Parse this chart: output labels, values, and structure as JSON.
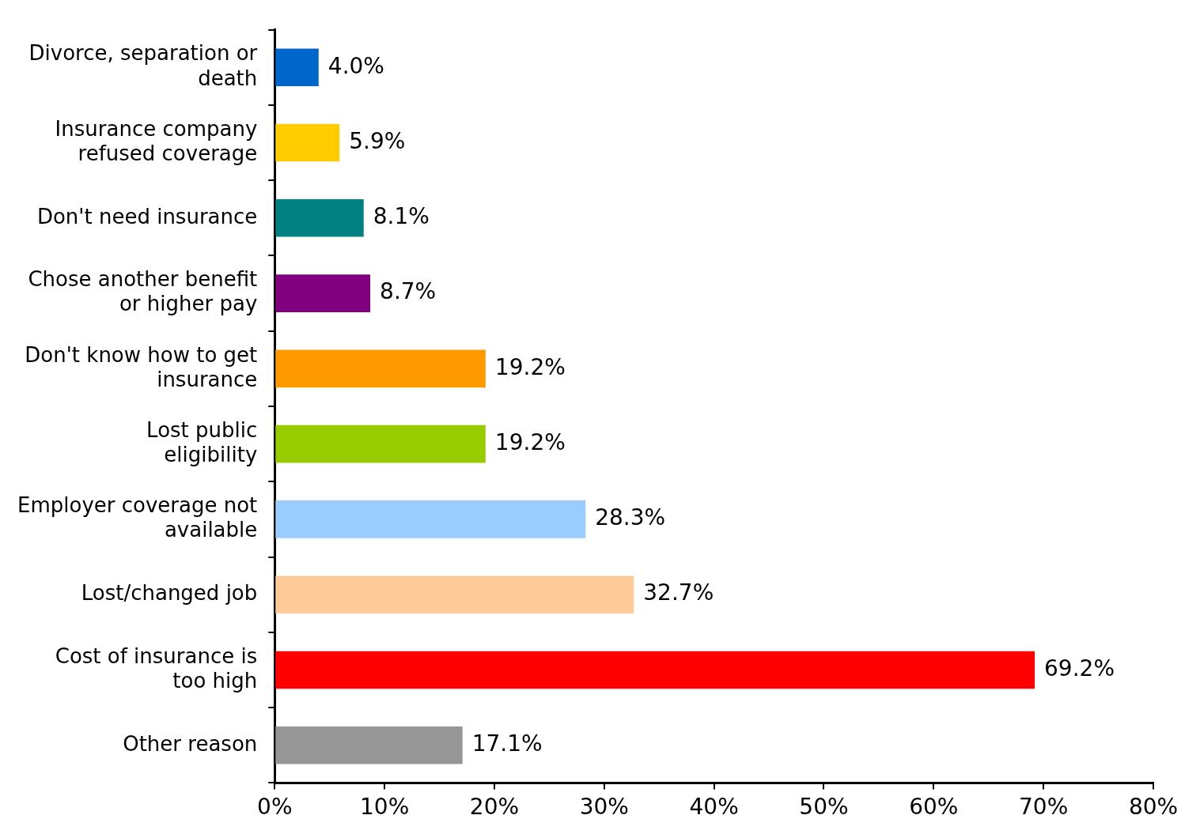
{
  "chart_data": {
    "type": "bar",
    "orientation": "horizontal",
    "categories": [
      "Divorce, separation or death",
      "Insurance company refused coverage",
      "Don't need insurance",
      "Chose another benefit or higher pay",
      "Don't know how to get insurance",
      "Lost public eligibility",
      "Employer coverage not available",
      "Lost/changed job",
      "Cost of insurance is too high",
      "Other reason"
    ],
    "values": [
      4.0,
      5.9,
      8.1,
      8.7,
      19.2,
      19.2,
      28.3,
      32.7,
      69.2,
      17.1
    ],
    "colors": [
      "#0066cc",
      "#ffcc00",
      "#008080",
      "#800080",
      "#ff9900",
      "#99cc00",
      "#99ccff",
      "#ffcc99",
      "#ff0000",
      "#969696"
    ],
    "value_labels": [
      "4.0%",
      "5.9%",
      "8.1%",
      "8.7%",
      "19.2%",
      "19.2%",
      "28.3%",
      "32.7%",
      "69.2%",
      "17.1%"
    ],
    "xlim": [
      0,
      80
    ],
    "xticks": [
      {
        "value": 0,
        "label": "0%"
      },
      {
        "value": 10,
        "label": "10%"
      },
      {
        "value": 20,
        "label": "20%"
      },
      {
        "value": 30,
        "label": "30%"
      },
      {
        "value": 40,
        "label": "40%"
      },
      {
        "value": 50,
        "label": "50%"
      },
      {
        "value": 60,
        "label": "60%"
      },
      {
        "value": 70,
        "label": "70%"
      },
      {
        "value": 80,
        "label": "80%"
      }
    ],
    "grid": false,
    "legend": false
  }
}
